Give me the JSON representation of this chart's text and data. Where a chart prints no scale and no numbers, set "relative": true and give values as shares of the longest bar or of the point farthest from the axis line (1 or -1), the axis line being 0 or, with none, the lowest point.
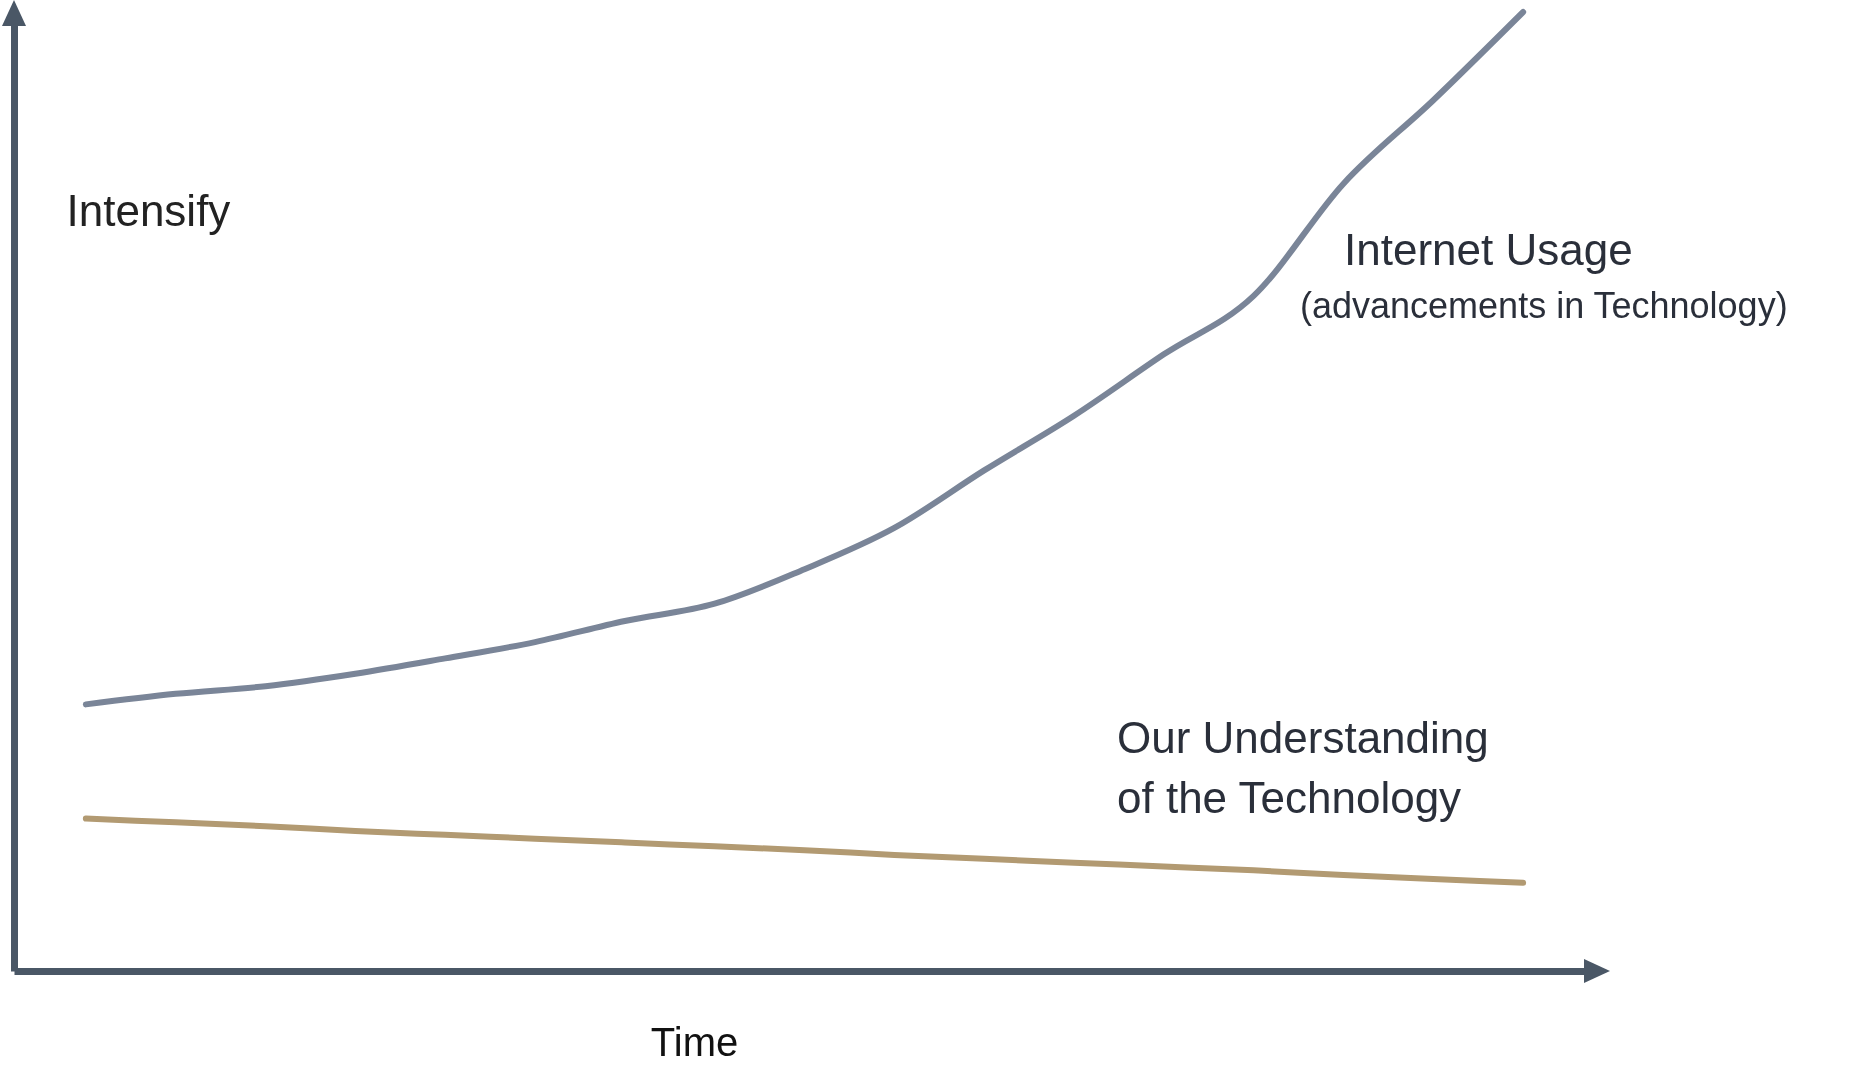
{
  "chart_data": {
    "type": "line",
    "relative": true,
    "xlabel": "Time",
    "ylabel": "Intensify",
    "categories": [
      null,
      null,
      null,
      null,
      null,
      null,
      null,
      null,
      null,
      null,
      null,
      null,
      null,
      null,
      null,
      null,
      null
    ],
    "series": [
      {
        "name": "Internet Usage",
        "color": "#7a8598",
        "values": [
          0.278,
          0.289,
          0.297,
          0.31,
          0.326,
          0.343,
          0.365,
          0.383,
          0.419,
          0.462,
          0.522,
          0.579,
          0.643,
          0.704,
          0.821,
          0.908,
          1
        ]
      },
      {
        "name": "Our Understanding\nof the Technology",
        "color": "#b29a72",
        "values": [
          0.159,
          0.155,
          0.151,
          0.146,
          0.142,
          0.138,
          0.134,
          0.13,
          0.126,
          0.121,
          0.117,
          0.113,
          0.109,
          0.105,
          0.1,
          0.096,
          0.092
        ]
      }
    ],
    "annotations": [
      "(advancements in Technology)"
    ],
    "grid": false
  }
}
